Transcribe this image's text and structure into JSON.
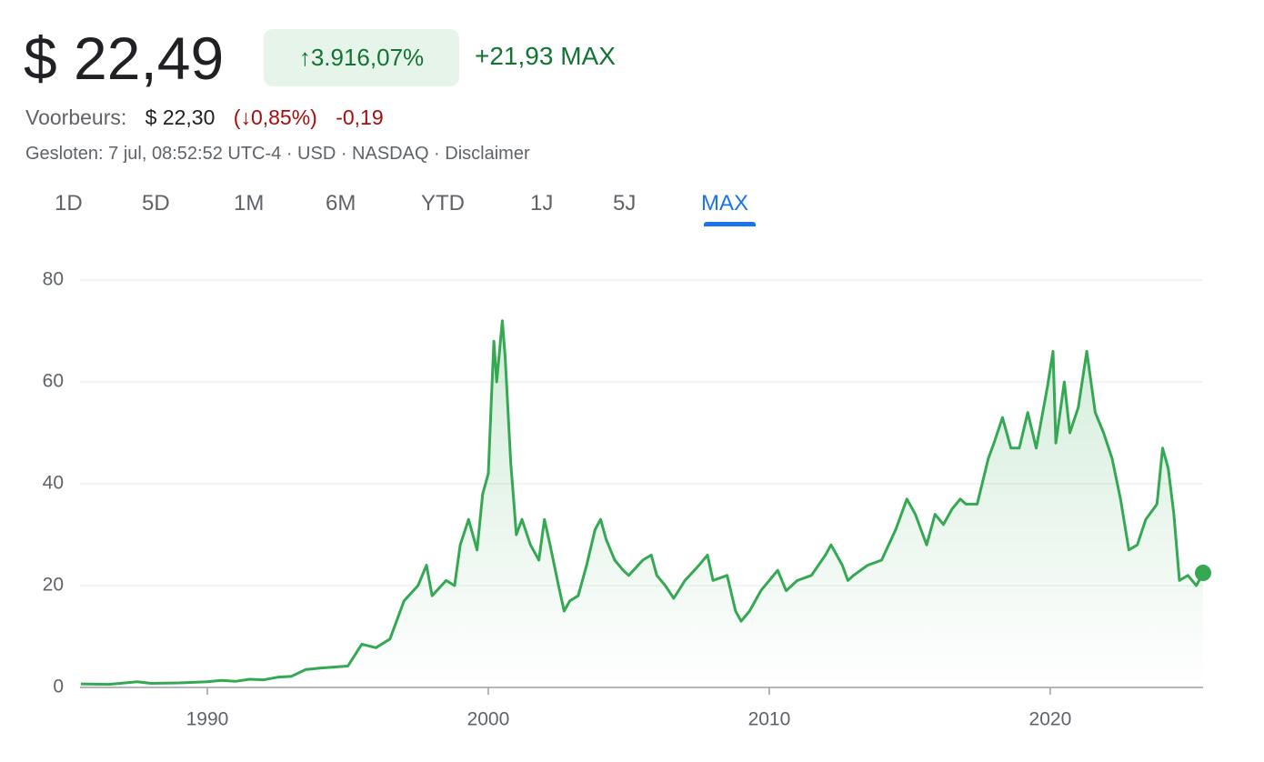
{
  "header": {
    "price": "$ 22,49",
    "change_percent": "↑3.916,07%",
    "change": "+21,93",
    "change_period": "MAX",
    "premarket_label": "Voorbeurs:",
    "premarket_price": "$ 22,30",
    "premarket_percent": "(↓0,85%)",
    "premarket_change": "-0,19",
    "status": "Gesloten: 7 jul, 08:52:52 UTC-4 · USD · NASDAQ · Disclaimer"
  },
  "tabs": [
    "1D",
    "5D",
    "1M",
    "6M",
    "YTD",
    "1J",
    "5J",
    "MAX"
  ],
  "selected_tab": 7,
  "chart_data": {
    "type": "area",
    "color": "#34a853",
    "grid": true,
    "x": [
      1985.5,
      1986.5,
      1987.5,
      1988,
      1989,
      1990,
      1990.5,
      1991,
      1991.5,
      1992,
      1992.5,
      1993,
      1993.5,
      1994,
      1994.5,
      1995,
      1995.5,
      1996,
      1996.5,
      1997,
      1997.5,
      1997.8,
      1998,
      1998.5,
      1998.8,
      1999,
      1999.3,
      1999.6,
      1999.8,
      2000,
      2000.1,
      2000.2,
      2000.3,
      2000.5,
      2000.6,
      2000.8,
      2000.9,
      2001,
      2001.2,
      2001.5,
      2001.8,
      2002,
      2002.2,
      2002.5,
      2002.7,
      2002.9,
      2003.2,
      2003.5,
      2003.8,
      2004,
      2004.2,
      2004.5,
      2004.8,
      2005,
      2005.5,
      2005.8,
      2006,
      2006.3,
      2006.6,
      2007,
      2007.5,
      2007.8,
      2008,
      2008.5,
      2008.8,
      2009,
      2009.3,
      2009.7,
      2010,
      2010.3,
      2010.6,
      2011,
      2011.5,
      2012,
      2012.2,
      2012.6,
      2012.8,
      2013,
      2013.5,
      2014,
      2014.5,
      2014.9,
      2015.2,
      2015.6,
      2015.9,
      2016.2,
      2016.5,
      2016.8,
      2017,
      2017.4,
      2017.8,
      2018,
      2018.3,
      2018.6,
      2018.9,
      2019.2,
      2019.5,
      2019.9,
      2020.1,
      2020.2,
      2020.5,
      2020.7,
      2021,
      2021.3,
      2021.6,
      2021.9,
      2022.2,
      2022.5,
      2022.8,
      2023.1,
      2023.4,
      2023.8,
      2024,
      2024.2,
      2024.4,
      2024.6,
      2024.9,
      2025.2,
      2025.44
    ],
    "values": [
      0.7,
      0.6,
      1.1,
      0.8,
      0.9,
      1.1,
      1.4,
      1.2,
      1.6,
      1.5,
      2.0,
      2.2,
      3.5,
      3.8,
      4.0,
      4.2,
      8.5,
      7.8,
      9.5,
      17,
      20,
      24,
      18,
      21,
      20,
      28,
      33,
      27,
      38,
      42,
      55,
      68,
      60,
      72,
      65,
      44,
      37,
      30,
      33,
      28,
      25,
      33,
      28,
      20,
      15,
      17,
      18,
      24,
      31,
      33,
      29,
      25,
      23,
      22,
      25,
      26,
      22,
      20,
      17.5,
      21,
      24,
      26,
      21,
      22,
      15,
      13,
      15,
      19,
      21,
      23,
      19,
      21,
      22,
      26,
      28,
      24,
      21,
      22,
      24,
      25,
      31,
      37,
      34,
      28,
      34,
      32,
      35,
      37,
      36,
      36,
      45,
      48,
      53,
      47,
      47,
      54,
      47,
      59,
      66,
      48,
      60,
      50,
      55,
      66,
      54,
      50,
      45,
      37,
      27,
      28,
      33,
      36,
      47,
      43,
      34,
      21,
      22,
      20,
      22.49
    ],
    "xlim": [
      1985.47,
      2025.44
    ],
    "ylim": [
      0,
      80
    ],
    "yticks": [
      0,
      20,
      40,
      60,
      80
    ],
    "xticks": [
      1990,
      2000,
      2010,
      2020
    ]
  }
}
